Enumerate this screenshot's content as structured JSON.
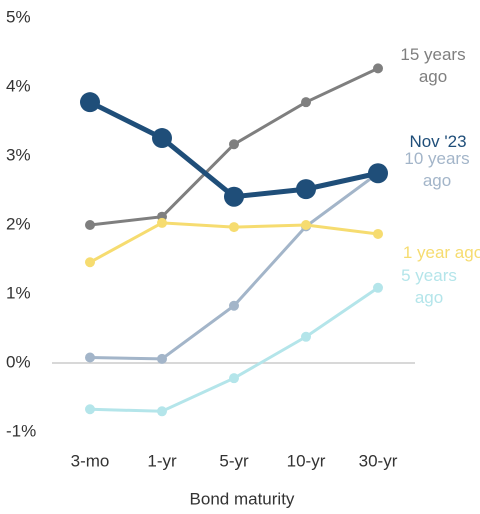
{
  "chart_data": {
    "type": "line",
    "x_label": "Bond maturity",
    "categories": [
      "3-mo",
      "1-yr",
      "5-yr",
      "10-yr",
      "30-yr"
    ],
    "series": [
      {
        "name": "15 years ago",
        "color": "#7f7f7f",
        "values": [
          2.0,
          2.12,
          3.17,
          3.78,
          4.27
        ]
      },
      {
        "name": "10 years ago",
        "color": "#a3b5c9",
        "values": [
          0.08,
          0.06,
          0.83,
          1.98,
          2.75
        ]
      },
      {
        "name": "1 year ago",
        "color": "#f6dc70",
        "values": [
          1.46,
          2.03,
          1.97,
          2.0,
          1.87
        ]
      },
      {
        "name": "5 years ago",
        "color": "#b4e5ea",
        "values": [
          -0.67,
          -0.7,
          -0.22,
          0.38,
          1.09
        ]
      },
      {
        "name": "Nov '23",
        "color": "#1f4e79",
        "values": [
          3.78,
          3.26,
          2.41,
          2.52,
          2.75
        ]
      }
    ],
    "ylim": [
      -1,
      5
    ],
    "yticks": [
      {
        "value": -1,
        "label": "-1%"
      },
      {
        "value": 0,
        "label": "0%"
      },
      {
        "value": 1,
        "label": "1%"
      },
      {
        "value": 2,
        "label": "2%"
      },
      {
        "value": 3,
        "label": "3%"
      },
      {
        "value": 4,
        "label": "4%"
      },
      {
        "value": 5,
        "label": "5%"
      }
    ],
    "grid": false
  }
}
